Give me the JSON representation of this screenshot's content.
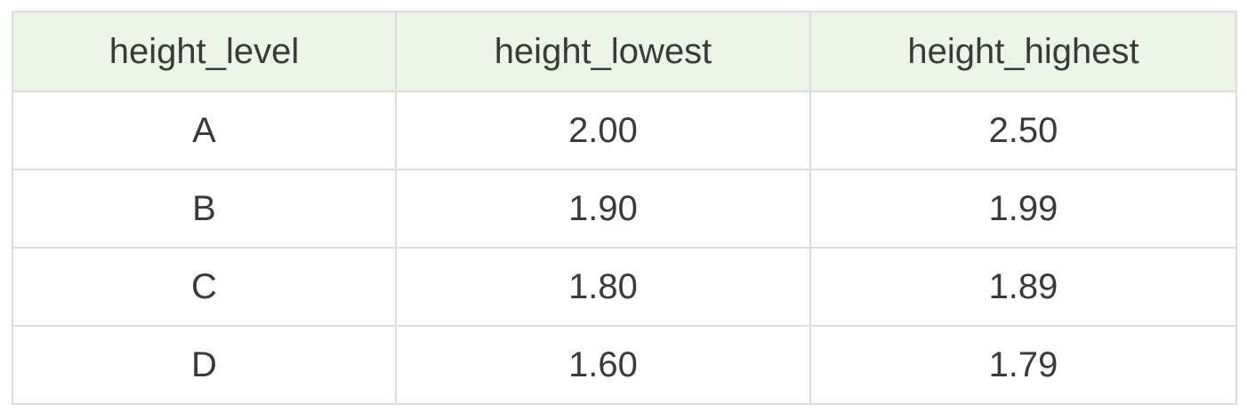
{
  "table": {
    "columns": [
      "height_level",
      "height_lowest",
      "height_highest"
    ],
    "rows": [
      [
        "A",
        "2.00",
        "2.50"
      ],
      [
        "B",
        "1.90",
        "1.99"
      ],
      [
        "C",
        "1.80",
        "1.89"
      ],
      [
        "D",
        "1.60",
        "1.79"
      ]
    ]
  },
  "colors": {
    "header_background": "#edf5e8",
    "border": "#dcdcdc",
    "text": "#3a3a3a"
  }
}
